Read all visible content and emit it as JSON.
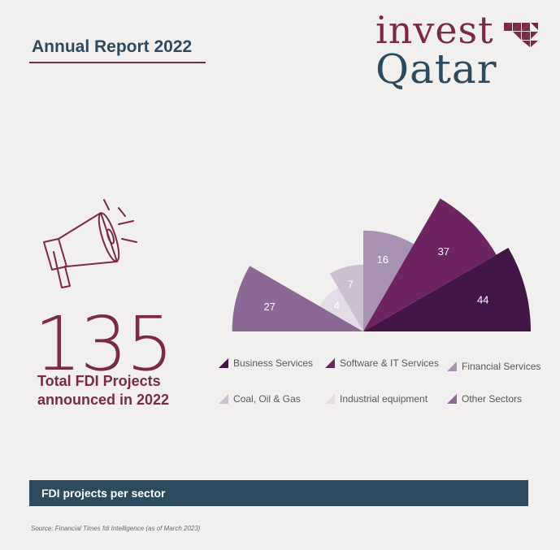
{
  "header": {
    "report_title": "Annual Report 2022",
    "logo_line1": "invest",
    "logo_line2": "Qatar"
  },
  "highlight": {
    "total": "135",
    "caption": "Total FDI Projects announced in 2022"
  },
  "colors": {
    "accent": "#7b2a45",
    "navy": "#2d4a5e"
  },
  "icons": {
    "headline": "megaphone-icon",
    "logo": "triangle-pattern-icon"
  },
  "chart_data": {
    "type": "pie",
    "layout": "half-rose",
    "title": "FDI projects per sector",
    "series": [
      {
        "name": "Other Sectors",
        "value": 27,
        "color": "#8a6a95"
      },
      {
        "name": "Industrial equipment",
        "value": 4,
        "color": "#e3dce6"
      },
      {
        "name": "Coal, Oil & Gas",
        "value": 7,
        "color": "#cbbfd1"
      },
      {
        "name": "Financial Services",
        "value": 16,
        "color": "#a893b1"
      },
      {
        "name": "Software & IT Services",
        "value": 37,
        "color": "#6e2460"
      },
      {
        "name": "Business Services",
        "value": 44,
        "color": "#421645"
      }
    ],
    "legend_order": [
      "Business Services",
      "Software & IT Services",
      "Financial Services",
      "Coal, Oil & Gas",
      "Industrial equipment",
      "Other Sectors"
    ]
  },
  "footer": {
    "label": "FDI projects per sector",
    "source": "Source: Financial Times fdi Intelligence (as of March 2023)"
  }
}
